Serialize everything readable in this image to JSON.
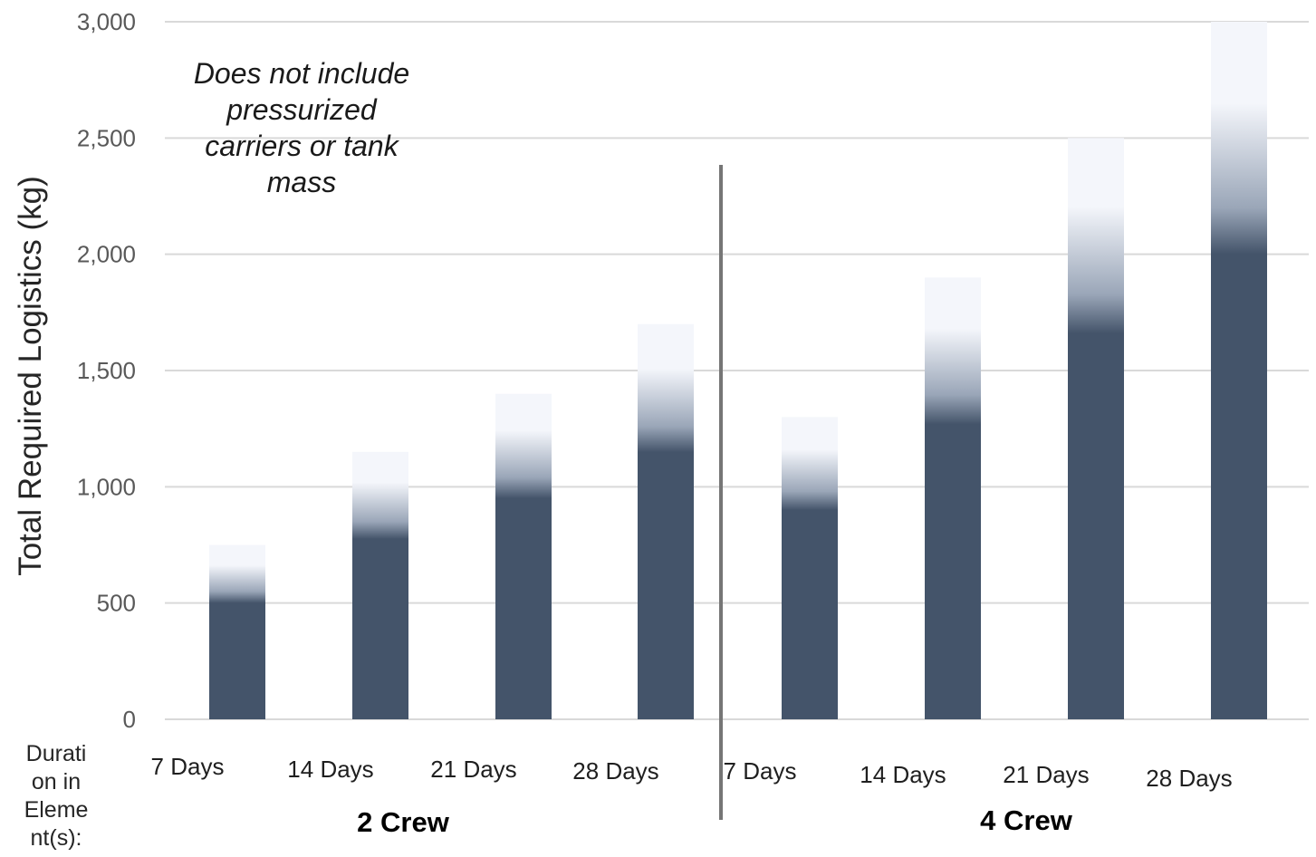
{
  "chart_data": {
    "type": "bar",
    "title": "",
    "ylabel": "Total Required Logistics (kg)",
    "xlabel_side": [
      "Durati",
      "on in",
      "Eleme",
      "nt(s):"
    ],
    "ylim": [
      0,
      3000
    ],
    "yticks": [
      0,
      500,
      1000,
      1500,
      2000,
      2500,
      3000
    ],
    "ytick_labels": [
      "0",
      "500",
      "1,000",
      "1,500",
      "2,000",
      "2,500",
      "3,000"
    ],
    "grid": true,
    "bar_color": "#44546a",
    "fade_color": "#f4f6fb",
    "groups": [
      {
        "label": "2 Crew",
        "categories": [
          "7 Days",
          "14 Days",
          "21 Days",
          "28 Days"
        ],
        "values": [
          750,
          1150,
          1400,
          1700
        ],
        "solid_values": [
          500,
          775,
          950,
          1150
        ]
      },
      {
        "label": "4 Crew",
        "categories": [
          "7 Days",
          "14 Days",
          "21 Days",
          "28 Days"
        ],
        "values": [
          1300,
          1900,
          2500,
          3000
        ],
        "solid_values": [
          900,
          1270,
          1660,
          2000
        ]
      }
    ],
    "annotation": [
      "Does not include",
      "pressurized",
      "carriers or tank",
      "mass"
    ]
  }
}
